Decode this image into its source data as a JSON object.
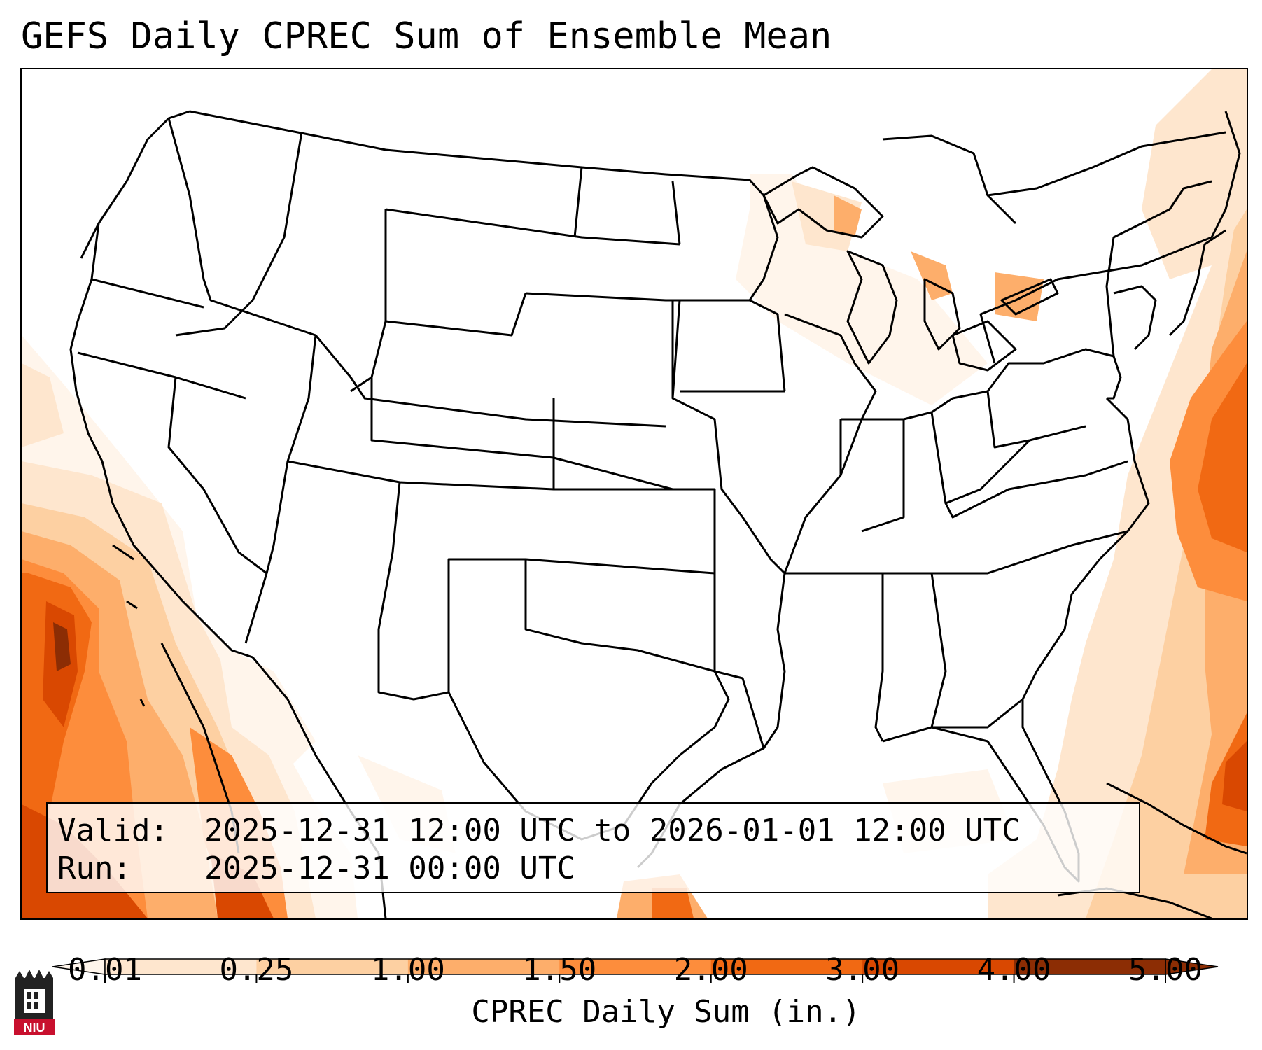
{
  "title": "GEFS Daily CPREC Sum of Ensemble Mean",
  "info": {
    "valid_label": "Valid:",
    "valid_value": "2025-12-31 12:00 UTC to 2026-01-01 12:00 UTC",
    "run_label": "Run:",
    "run_value": "2025-12-31 00:00 UTC"
  },
  "colorbar": {
    "label": "CPREC Daily Sum (in.)",
    "ticks": [
      "0.01",
      "0.25",
      "1.00",
      "1.50",
      "2.00",
      "3.00",
      "4.00",
      "5.00"
    ],
    "colors": [
      "#fff5eb",
      "#fee6ce",
      "#fdd0a2",
      "#fdae6b",
      "#fd8d3c",
      "#f16913",
      "#d94801",
      "#8c2d04"
    ],
    "extend": "both"
  },
  "logo": {
    "text": "NIU",
    "colors": {
      "tower": "#222222",
      "badge": "#c8102e"
    }
  }
}
